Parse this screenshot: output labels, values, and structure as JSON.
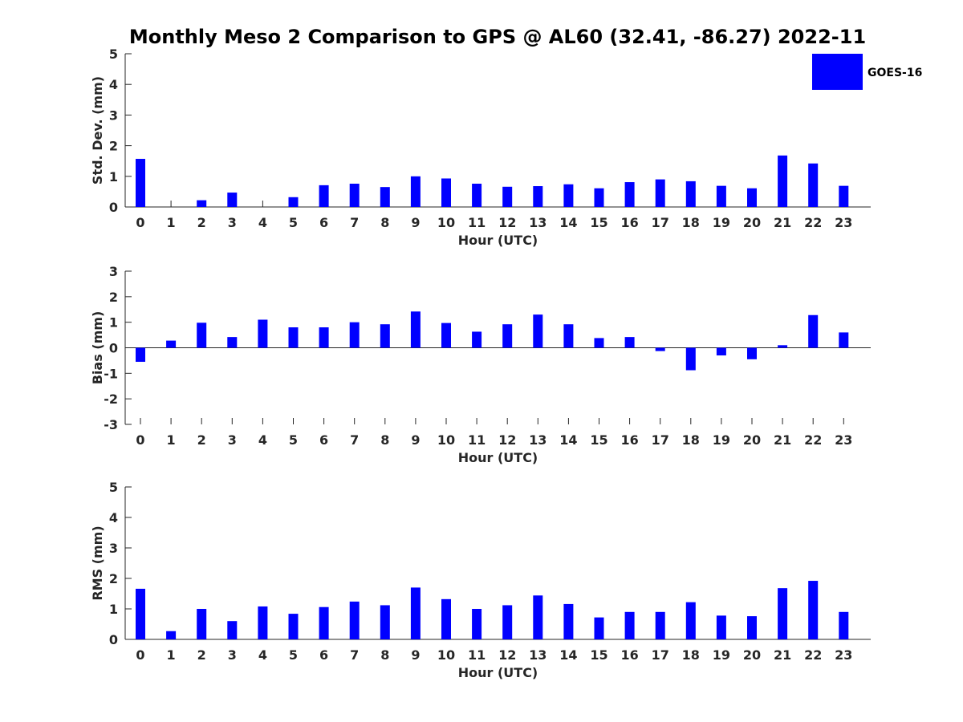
{
  "figure": {
    "title": "Monthly Meso 2 Comparison to GPS @ AL60 (32.41, -86.27) 2022-11"
  },
  "legend": {
    "label": "GOES-16",
    "color": "#0000ff",
    "placement": "top-right"
  },
  "chart_data": [
    {
      "type": "bar",
      "ylabel": "Std. Dev. (mm)",
      "xlabel": "Hour (UTC)",
      "ylim": [
        0,
        5
      ],
      "yticks": [
        "0",
        "1",
        "2",
        "3",
        "4",
        "5"
      ],
      "categories": [
        "0",
        "1",
        "2",
        "3",
        "4",
        "5",
        "6",
        "7",
        "8",
        "9",
        "10",
        "11",
        "12",
        "13",
        "14",
        "15",
        "16",
        "17",
        "18",
        "19",
        "20",
        "21",
        "22",
        "23"
      ],
      "series": [
        {
          "name": "GOES-16",
          "color": "#0000ff",
          "values": [
            1.57,
            0.0,
            0.22,
            0.47,
            0.0,
            0.32,
            0.71,
            0.76,
            0.65,
            1.0,
            0.93,
            0.76,
            0.66,
            0.68,
            0.74,
            0.61,
            0.81,
            0.9,
            0.84,
            0.69,
            0.61,
            1.68,
            1.42,
            0.69
          ]
        }
      ]
    },
    {
      "type": "bar",
      "ylabel": "Bias (mm)",
      "xlabel": "Hour (UTC)",
      "ylim": [
        -3,
        3
      ],
      "yticks": [
        "-3",
        "-2",
        "-1",
        "0",
        "1",
        "2",
        "3"
      ],
      "categories": [
        "0",
        "1",
        "2",
        "3",
        "4",
        "5",
        "6",
        "7",
        "8",
        "9",
        "10",
        "11",
        "12",
        "13",
        "14",
        "15",
        "16",
        "17",
        "18",
        "19",
        "20",
        "21",
        "22",
        "23"
      ],
      "series": [
        {
          "name": "GOES-16",
          "color": "#0000ff",
          "values": [
            -0.55,
            0.28,
            0.98,
            0.42,
            1.1,
            0.8,
            0.8,
            1.0,
            0.92,
            1.42,
            0.97,
            0.63,
            0.92,
            1.3,
            0.92,
            0.38,
            0.42,
            -0.13,
            -0.88,
            -0.3,
            -0.45,
            0.1,
            1.28,
            0.6
          ]
        }
      ]
    },
    {
      "type": "bar",
      "ylabel": "RMS (mm)",
      "xlabel": "Hour (UTC)",
      "ylim": [
        0,
        5
      ],
      "yticks": [
        "0",
        "1",
        "2",
        "3",
        "4",
        "5"
      ],
      "categories": [
        "0",
        "1",
        "2",
        "3",
        "4",
        "5",
        "6",
        "7",
        "8",
        "9",
        "10",
        "11",
        "12",
        "13",
        "14",
        "15",
        "16",
        "17",
        "18",
        "19",
        "20",
        "21",
        "22",
        "23"
      ],
      "series": [
        {
          "name": "GOES-16",
          "color": "#0000ff",
          "values": [
            1.66,
            0.27,
            1.0,
            0.6,
            1.08,
            0.84,
            1.06,
            1.24,
            1.12,
            1.7,
            1.32,
            1.0,
            1.12,
            1.44,
            1.16,
            0.72,
            0.9,
            0.9,
            1.22,
            0.78,
            0.76,
            1.68,
            1.92,
            0.9
          ]
        }
      ]
    }
  ]
}
